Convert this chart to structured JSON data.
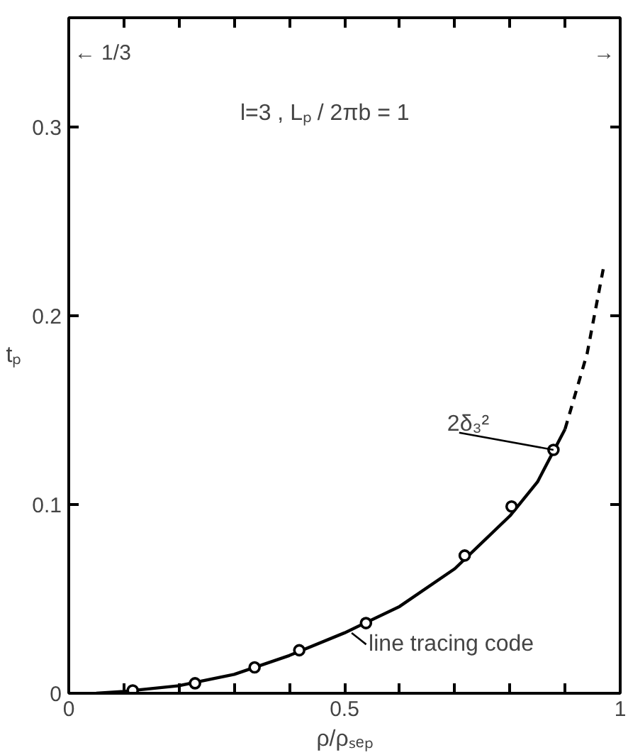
{
  "chart_data": {
    "type": "line",
    "title": "l=3 ,  Lₚ / 2πb = 1",
    "xlabel": "ρ/ρₛₑₚ",
    "ylabel": "tₚ",
    "xlim": [
      0,
      1
    ],
    "ylim": [
      0,
      0.358
    ],
    "xticks": [
      0,
      {
        "value": 0.1,
        "label": null
      },
      {
        "value": 0.2,
        "label": null
      },
      {
        "value": 0.3,
        "label": null
      },
      {
        "value": 0.4,
        "label": null
      },
      0.5,
      {
        "value": 0.6,
        "label": null
      },
      {
        "value": 0.7,
        "label": null
      },
      {
        "value": 0.8,
        "label": null
      },
      {
        "value": 0.9,
        "label": null
      },
      1
    ],
    "yticks": [
      0,
      0.1,
      0.2,
      0.3
    ],
    "grid": false,
    "series": [
      {
        "color": "#000000",
        "line_style": "solid",
        "marker": "none",
        "x": [
          0.05,
          0.1,
          0.2,
          0.3,
          0.4,
          0.5,
          0.6,
          0.7,
          0.8,
          0.85,
          0.9
        ],
        "values": [
          0.0,
          0.001,
          0.004,
          0.01,
          0.02,
          0.032,
          0.046,
          0.066,
          0.094,
          0.112,
          0.14
        ]
      },
      {
        "color": "#000000",
        "line_style": "dashed",
        "marker": "none",
        "x": [
          0.9,
          0.94,
          0.97
        ],
        "values": [
          0.14,
          0.18,
          0.226
        ]
      },
      {
        "type": "scatter",
        "color": "#000000",
        "marker": "circle",
        "x": [
          0.116,
          0.229,
          0.337,
          0.418,
          0.539,
          0.718,
          0.803,
          0.879
        ],
        "values": [
          0.0015,
          0.0053,
          0.0137,
          0.0228,
          0.0372,
          0.073,
          0.099,
          0.129
        ]
      }
    ],
    "annotations": [
      "← 1/3",
      "→",
      {
        "text": "2δ₃²",
        "x": 0.879,
        "y": 0.129
      },
      {
        "text": "line tracing code",
        "x": 0.513,
        "y": 0.032
      }
    ]
  }
}
